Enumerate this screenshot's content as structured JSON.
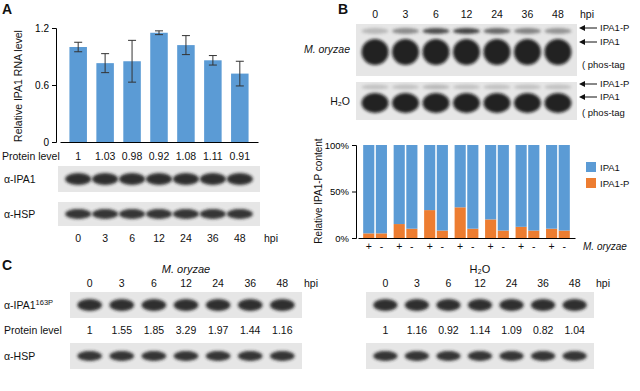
{
  "chart_data": [
    {
      "type": "bar",
      "y_label": "Relative IPA1 RNA level",
      "x_label": "hpi",
      "categories": [
        "0",
        "3",
        "6",
        "12",
        "24",
        "36",
        "48"
      ],
      "values": [
        1.0,
        0.83,
        0.85,
        1.15,
        1.02,
        0.86,
        0.72
      ],
      "errors": [
        0.05,
        0.1,
        0.22,
        0.02,
        0.1,
        0.05,
        0.13
      ],
      "color": "#5b9bd5",
      "ylim": [
        0,
        1.2
      ],
      "yticks": [
        0,
        0.6,
        1.2
      ]
    },
    {
      "type": "bar",
      "stacked": true,
      "legend": "right",
      "y_label": "Relative IPA1-P content",
      "x_label": "M. oryzae",
      "categories": [
        "+",
        "-",
        "+",
        "-",
        "+",
        "-",
        "+",
        "-",
        "+",
        "-",
        "+",
        "-",
        "+",
        "-"
      ],
      "series": [
        {
          "name": "IPA1",
          "color": "#5b9bd5",
          "values": [
            95,
            95,
            85,
            90,
            70,
            92,
            67,
            90,
            80,
            92,
            88,
            92,
            90,
            92
          ]
        },
        {
          "name": "IPA1-P",
          "color": "#ed7d31",
          "values": [
            5,
            5,
            15,
            10,
            30,
            8,
            33,
            10,
            20,
            8,
            12,
            8,
            10,
            8
          ]
        }
      ],
      "ylim": [
        0,
        100
      ],
      "yticks": [
        {
          "value": 0,
          "label": "0%"
        },
        {
          "value": 50,
          "label": "50%"
        },
        {
          "value": 100,
          "label": "100%"
        }
      ]
    }
  ],
  "panels": [
    "A",
    "B",
    "C"
  ],
  "blots": {
    "A": {
      "rows": [
        "α-IPA1",
        "α-HSP"
      ],
      "level_label": "Protein level",
      "protein_level": [
        1,
        1.03,
        0.98,
        0.92,
        1.08,
        1.11,
        0.91
      ]
    },
    "B": {
      "time_points": [
        "0",
        "3",
        "6",
        "12",
        "24",
        "36",
        "48"
      ],
      "unit": "hpi",
      "samples": [
        "M. oryzae",
        "H₂O"
      ],
      "bands": [
        "IPA1-P",
        "IPA1"
      ],
      "note": "( phos-tag"
    },
    "C": {
      "time_points": [
        "0",
        "3",
        "6",
        "12",
        "24",
        "36",
        "48"
      ],
      "unit": "hpi",
      "rows": [
        {
          "label": "α-IPA1",
          "sup": "163P"
        },
        {
          "label": "α-HSP"
        }
      ],
      "level_label": "Protein level",
      "groups": [
        {
          "name": "M. oryzae",
          "protein_level": [
            1,
            1.55,
            1.85,
            3.29,
            1.97,
            1.44,
            1.16
          ]
        },
        {
          "name": "H₂O",
          "protein_level": [
            1,
            1.16,
            0.92,
            1.14,
            1.09,
            0.82,
            1.04
          ]
        }
      ]
    }
  }
}
